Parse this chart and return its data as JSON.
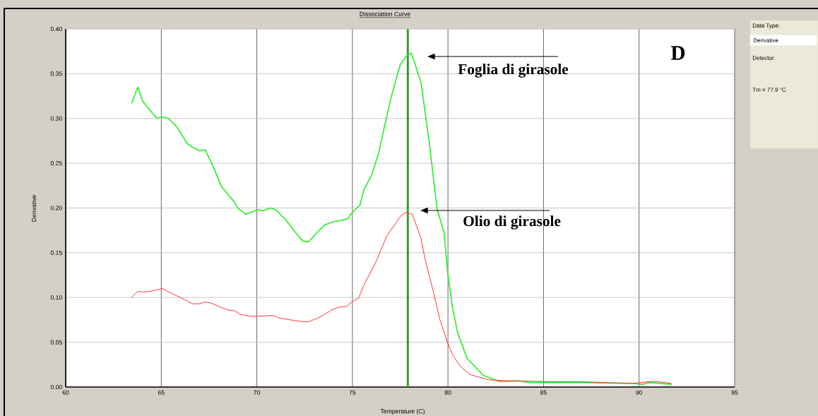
{
  "chart_data": {
    "type": "line",
    "title": "Dissociation Curve",
    "xlabel": "Temperature (C)",
    "ylabel": "Derivative",
    "xlim": [
      60,
      95
    ],
    "ylim": [
      0,
      0.4
    ],
    "xticks": [
      60,
      65,
      70,
      75,
      80,
      85,
      90,
      95
    ],
    "yticks": [
      {
        "value": 0,
        "label": "0.00"
      },
      {
        "value": 0.05,
        "label": "0.05"
      },
      {
        "value": 0.1,
        "label": "0.10"
      },
      {
        "value": 0.15,
        "label": "0.15"
      },
      {
        "value": 0.2,
        "label": "0.20"
      },
      {
        "value": 0.25,
        "label": "0.25"
      },
      {
        "value": 0.3,
        "label": "0.30"
      },
      {
        "value": 0.35,
        "label": "0.35"
      },
      {
        "value": 0.4,
        "label": "0.40"
      }
    ],
    "grid": true,
    "marker": "none",
    "line_style": "solid",
    "series": [
      {
        "color": "#33ee33",
        "x": [
          63.45,
          63.77,
          64.03,
          64.77,
          65.06,
          65.37,
          65.8,
          66.35,
          66.7,
          67.0,
          67.3,
          67.7,
          68.15,
          68.85,
          69.04,
          69.42,
          69.78,
          70.06,
          70.35,
          70.7,
          71.0,
          71.5,
          72.05,
          72.4,
          72.7,
          73.04,
          73.54,
          74.04,
          74.4,
          74.75,
          75.03,
          75.39,
          75.6,
          76.03,
          76.38,
          76.73,
          77.02,
          77.5,
          77.84,
          78.09,
          78.59,
          79.01,
          79.43,
          79.79,
          79.98,
          80.22,
          80.5,
          81.0,
          81.85,
          82.7,
          83.7,
          84.27,
          86.8,
          89.66,
          90.2,
          90.5,
          91.7
        ],
        "values": [
          0.317,
          0.335,
          0.319,
          0.3,
          0.302,
          0.3,
          0.291,
          0.272,
          0.267,
          0.264,
          0.265,
          0.247,
          0.224,
          0.206,
          0.199,
          0.193,
          0.196,
          0.198,
          0.197,
          0.2,
          0.198,
          0.187,
          0.172,
          0.163,
          0.162,
          0.17,
          0.181,
          0.185,
          0.186,
          0.188,
          0.196,
          0.203,
          0.22,
          0.238,
          0.262,
          0.296,
          0.323,
          0.36,
          0.37,
          0.373,
          0.34,
          0.275,
          0.199,
          0.173,
          0.129,
          0.091,
          0.061,
          0.032,
          0.013,
          0.006,
          0.007,
          0.005,
          0.005,
          0.004,
          0.003,
          0.005,
          0.003
        ]
      },
      {
        "color": "#ff3333",
        "x": [
          63.45,
          63.77,
          64.05,
          64.45,
          65.06,
          65.5,
          66.0,
          66.37,
          66.65,
          67.0,
          67.3,
          67.58,
          68.0,
          68.5,
          68.86,
          69.14,
          69.71,
          70.06,
          70.84,
          71.2,
          71.77,
          72.4,
          72.7,
          73.19,
          73.54,
          73.9,
          74.25,
          74.68,
          75.03,
          75.32,
          75.6,
          76.24,
          76.8,
          77.24,
          77.52,
          77.8,
          78.13,
          78.58,
          78.8,
          79.23,
          79.58,
          79.94,
          80.22,
          80.65,
          81.15,
          82.14,
          83.13,
          85.41,
          86.82,
          89.66,
          90.51,
          91.0,
          91.7
        ],
        "values": [
          0.1,
          0.107,
          0.106,
          0.107,
          0.11,
          0.105,
          0.1,
          0.096,
          0.093,
          0.093,
          0.095,
          0.094,
          0.09,
          0.086,
          0.085,
          0.081,
          0.079,
          0.079,
          0.08,
          0.077,
          0.075,
          0.073,
          0.073,
          0.077,
          0.081,
          0.086,
          0.089,
          0.09,
          0.096,
          0.099,
          0.114,
          0.14,
          0.169,
          0.182,
          0.191,
          0.195,
          0.193,
          0.167,
          0.143,
          0.107,
          0.075,
          0.052,
          0.037,
          0.023,
          0.014,
          0.008,
          0.007,
          0.006,
          0.006,
          0.004,
          0.006,
          0.006,
          0.004
        ]
      }
    ],
    "ref_lines": [
      {
        "axis": "x",
        "value": 77.9,
        "color": "#2e9e2e"
      }
    ],
    "annotations": [
      "D",
      "Foglia di girasole",
      "Olio di girasole",
      "Data Type:",
      "Derivative",
      "Detector:",
      "Tm = 77.9 °C"
    ]
  }
}
